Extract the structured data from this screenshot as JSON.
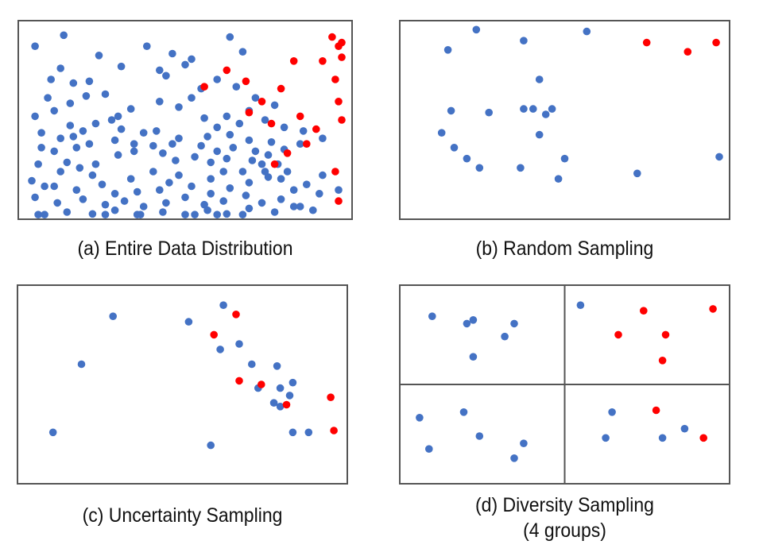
{
  "colors": {
    "unlabeled": "#4472C4",
    "selected": "#FF0000",
    "border": "#555555"
  },
  "chart_data": [
    {
      "type": "scatter",
      "id": "a",
      "title": "(a) Entire Data Distribution",
      "xlim": [
        0,
        100
      ],
      "ylim": [
        0,
        100
      ],
      "grid": false,
      "series": [
        {
          "name": "unlabeled",
          "color": "#4472C4",
          "points": [
            [
              12,
              96
            ],
            [
              23,
              85
            ],
            [
              38,
              90
            ],
            [
              46,
              86
            ],
            [
              52,
              83
            ],
            [
              64,
              95
            ],
            [
              68,
              87
            ],
            [
              50,
              80
            ],
            [
              44,
              74
            ],
            [
              42,
              77
            ],
            [
              30,
              79
            ],
            [
              20,
              71
            ],
            [
              25,
              64
            ],
            [
              33,
              56
            ],
            [
              42,
              60
            ],
            [
              52,
              62
            ],
            [
              55,
              67
            ],
            [
              48,
              57
            ],
            [
              56,
              51
            ],
            [
              3,
              90
            ],
            [
              11,
              78
            ],
            [
              8,
              72
            ],
            [
              15,
              70
            ],
            [
              7,
              62
            ],
            [
              14,
              59
            ],
            [
              19,
              63
            ],
            [
              3,
              52
            ],
            [
              9,
              55
            ],
            [
              14,
              47
            ],
            [
              5,
              43
            ],
            [
              11,
              40
            ],
            [
              15,
              41
            ],
            [
              18,
              44
            ],
            [
              22,
              48
            ],
            [
              27,
              50
            ],
            [
              29,
              52
            ],
            [
              30,
              45
            ],
            [
              37,
              43
            ],
            [
              41,
              44
            ],
            [
              5,
              35
            ],
            [
              9,
              33
            ],
            [
              16,
              35
            ],
            [
              20,
              37
            ],
            [
              28,
              39
            ],
            [
              34,
              37
            ],
            [
              40,
              36
            ],
            [
              46,
              37
            ],
            [
              48,
              40
            ],
            [
              57,
              41
            ],
            [
              64,
              42
            ],
            [
              70,
              39
            ],
            [
              4,
              26
            ],
            [
              13,
              27
            ],
            [
              22,
              26
            ],
            [
              29,
              31
            ],
            [
              34,
              33
            ],
            [
              43,
              32
            ],
            [
              47,
              28
            ],
            [
              53,
              30
            ],
            [
              58,
              27
            ],
            [
              63,
              29
            ],
            [
              71,
              28
            ],
            [
              76,
              31
            ],
            [
              81,
              34
            ],
            [
              86,
              37
            ],
            [
              2,
              17
            ],
            [
              9,
              14
            ],
            [
              16,
              12
            ],
            [
              24,
              15
            ],
            [
              33,
              18
            ],
            [
              40,
              22
            ],
            [
              45,
              16
            ],
            [
              52,
              14
            ],
            [
              58,
              10
            ],
            [
              64,
              13
            ],
            [
              70,
              16
            ],
            [
              76,
              19
            ],
            [
              82,
              22
            ],
            [
              88,
              15
            ],
            [
              93,
              20
            ],
            [
              3,
              8
            ],
            [
              10,
              5
            ],
            [
              18,
              7
            ],
            [
              25,
              4
            ],
            [
              31,
              6
            ],
            [
              37,
              3
            ],
            [
              44,
              5
            ],
            [
              50,
              8
            ],
            [
              56,
              4
            ],
            [
              62,
              6
            ],
            [
              69,
              9
            ],
            [
              74,
              5
            ],
            [
              80,
              7
            ],
            [
              86,
              3
            ],
            [
              92,
              10
            ],
            [
              98,
              12
            ],
            [
              6,
              -2
            ],
            [
              13,
              0
            ],
            [
              21,
              -1
            ],
            [
              28,
              1
            ],
            [
              35,
              -3
            ],
            [
              43,
              0
            ],
            [
              50,
              -2
            ],
            [
              57,
              1
            ],
            [
              63,
              -1
            ],
            [
              70,
              2
            ],
            [
              78,
              0
            ],
            [
              84,
              3
            ],
            [
              90,
              1
            ],
            [
              60,
              72
            ],
            [
              66,
              68
            ],
            [
              72,
              62
            ],
            [
              78,
              58
            ],
            [
              70,
              55
            ],
            [
              75,
              50
            ],
            [
              81,
              46
            ],
            [
              87,
              44
            ],
            [
              93,
              40
            ],
            [
              63,
              52
            ],
            [
              67,
              48
            ],
            [
              60,
              46
            ],
            [
              55,
              36
            ],
            [
              60,
              33
            ],
            [
              75,
              22
            ],
            [
              80,
              18
            ],
            [
              84,
              12
            ],
            [
              74,
              26
            ],
            [
              79,
              26
            ],
            [
              68,
              22
            ],
            [
              72,
              33
            ],
            [
              77,
              38
            ],
            [
              65,
              35
            ],
            [
              62,
              22
            ],
            [
              58,
              18
            ],
            [
              48,
              20
            ],
            [
              42,
              12
            ],
            [
              35,
              11
            ],
            [
              28,
              10
            ],
            [
              21,
              20
            ],
            [
              17,
              24
            ],
            [
              11,
              22
            ],
            [
              6,
              14
            ],
            [
              4,
              -4
            ],
            [
              25,
              -6
            ],
            [
              36,
              -6
            ],
            [
              53,
              -8
            ],
            [
              60,
              -6
            ],
            [
              68,
              -4
            ]
          ]
        },
        {
          "name": "selected",
          "color": "#FF0000",
          "points": [
            [
              63,
              77
            ],
            [
              69,
              71
            ],
            [
              56,
              68
            ],
            [
              84,
              82
            ],
            [
              80,
              67
            ],
            [
              93,
              82
            ],
            [
              99,
              92
            ],
            [
              96,
              95
            ],
            [
              98,
              90
            ],
            [
              99,
              84
            ],
            [
              97,
              72
            ],
            [
              98,
              60
            ],
            [
              99,
              50
            ],
            [
              74,
              60
            ],
            [
              70,
              54
            ],
            [
              77,
              48
            ],
            [
              86,
              52
            ],
            [
              91,
              45
            ],
            [
              78,
              26
            ],
            [
              82,
              32
            ],
            [
              88,
              37
            ],
            [
              97,
              22
            ],
            [
              98,
              6
            ]
          ]
        }
      ]
    },
    {
      "type": "scatter",
      "id": "b",
      "title": "(b) Random Sampling",
      "xlim": [
        0,
        100
      ],
      "ylim": [
        0,
        100
      ],
      "grid": false,
      "series": [
        {
          "name": "unlabeled",
          "color": "#4472C4",
          "points": [
            [
              22,
              99
            ],
            [
              13,
              88
            ],
            [
              37,
              93
            ],
            [
              57,
              98
            ],
            [
              42,
              72
            ],
            [
              14,
              55
            ],
            [
              26,
              54
            ],
            [
              37,
              56
            ],
            [
              40,
              56
            ],
            [
              46,
              56
            ],
            [
              44,
              53
            ],
            [
              11,
              43
            ],
            [
              42,
              42
            ],
            [
              15,
              35
            ],
            [
              19,
              29
            ],
            [
              50,
              29
            ],
            [
              23,
              24
            ],
            [
              36,
              24
            ],
            [
              48,
              18
            ],
            [
              73,
              21
            ],
            [
              99,
              30
            ]
          ]
        },
        {
          "name": "selected",
          "color": "#FF0000",
          "points": [
            [
              76,
              92
            ],
            [
              89,
              87
            ],
            [
              98,
              92
            ]
          ]
        }
      ]
    },
    {
      "type": "scatter",
      "id": "c",
      "title": "(c) Uncertainty Sampling",
      "xlim": [
        0,
        100
      ],
      "ylim": [
        0,
        100
      ],
      "grid": false,
      "series": [
        {
          "name": "unlabeled",
          "color": "#4472C4",
          "points": [
            [
              28,
              87
            ],
            [
              18,
              61
            ],
            [
              9,
              24
            ],
            [
              52,
              84
            ],
            [
              63,
              93
            ],
            [
              62,
              69
            ],
            [
              68,
              72
            ],
            [
              72,
              61
            ],
            [
              80,
              60
            ],
            [
              85,
              51
            ],
            [
              81,
              48
            ],
            [
              74,
              48
            ],
            [
              79,
              40
            ],
            [
              84,
              44
            ],
            [
              90,
              24
            ],
            [
              59,
              17
            ],
            [
              85,
              24
            ],
            [
              81,
              38
            ]
          ]
        },
        {
          "name": "selected",
          "color": "#FF0000",
          "points": [
            [
              67,
              88
            ],
            [
              60,
              77
            ],
            [
              68,
              52
            ],
            [
              75,
              50
            ],
            [
              83,
              39
            ],
            [
              97,
              43
            ],
            [
              98,
              25
            ]
          ]
        }
      ]
    },
    {
      "type": "scatter",
      "id": "d",
      "title": "(d) Diversity Sampling",
      "subtitle": "(4 groups)",
      "xlim": [
        0,
        100
      ],
      "ylim": [
        0,
        100
      ],
      "grid": false,
      "groups": 4,
      "series": [
        {
          "name": "unlabeled",
          "color": "#4472C4",
          "points": [
            [
              8,
              87
            ],
            [
              19,
              83
            ],
            [
              21,
              85
            ],
            [
              34,
              83
            ],
            [
              31,
              76
            ],
            [
              21,
              65
            ],
            [
              55,
              93
            ],
            [
              4,
              32
            ],
            [
              18,
              35
            ],
            [
              7,
              15
            ],
            [
              23,
              22
            ],
            [
              37,
              18
            ],
            [
              34,
              10
            ],
            [
              65,
              35
            ],
            [
              63,
              21
            ],
            [
              81,
              21
            ],
            [
              88,
              26
            ]
          ]
        },
        {
          "name": "selected",
          "color": "#FF0000",
          "points": [
            [
              75,
              90
            ],
            [
              97,
              91
            ],
            [
              67,
              77
            ],
            [
              82,
              77
            ],
            [
              81,
              63
            ],
            [
              79,
              36
            ],
            [
              94,
              21
            ]
          ]
        }
      ]
    }
  ],
  "captions": {
    "a": "(a) Entire Data Distribution",
    "b": "(b) Random Sampling",
    "c": "(c) Uncertainty Sampling",
    "d_line1": "(d) Diversity Sampling",
    "d_line2": "(4 groups)"
  }
}
